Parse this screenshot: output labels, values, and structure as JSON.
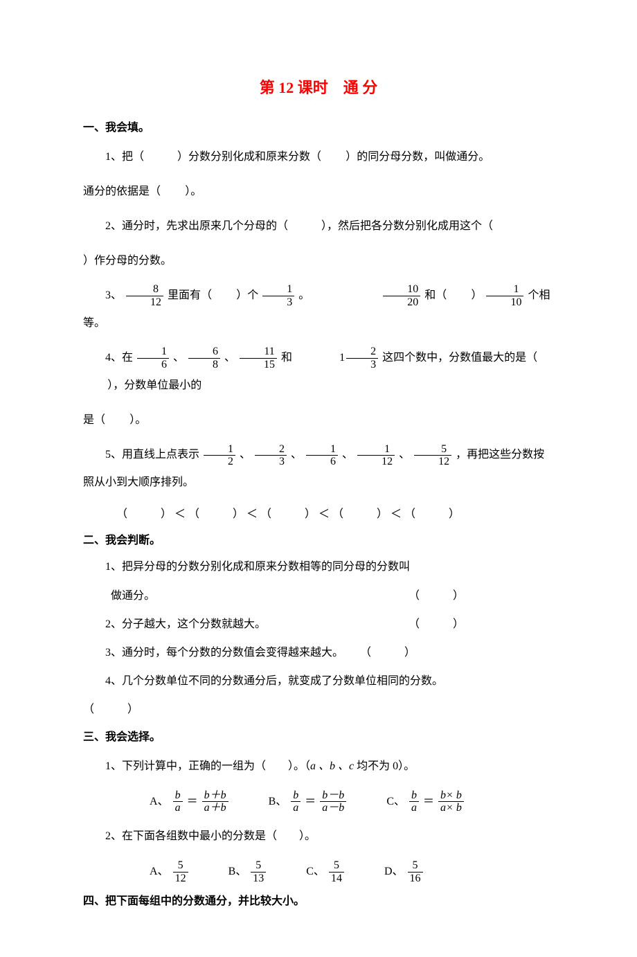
{
  "colors": {
    "title": "#ff0000",
    "text": "#000000",
    "bg": "#ffffff"
  },
  "title": "第 12 课时　通 分",
  "s1": {
    "heading": "一、我会填。",
    "q1a": "1、把（",
    "q1b": "）分数分别化成和原来分数（",
    "q1c": "）的同分母分数，叫做通分。",
    "q1d": "通分的依据是（",
    "q1e": "）。",
    "q2a": "2、通分时，先求出原来几个分母的（",
    "q2b": "），然后把各分数分别化成用这个（",
    "q2c": "）作分母的分数。",
    "q3a": "3、",
    "q3b": " 里面有（",
    "q3c": "）个",
    "q3d": " 。",
    "q3e": " 和（",
    "q3f": "）",
    "q3g": " 个相等。",
    "f8_12_n": "8",
    "f8_12_d": "12",
    "f1_3_n": "1",
    "f1_3_d": "3",
    "f10_20_n": "10",
    "f10_20_d": "20",
    "f1_10_n": "1",
    "f1_10_d": "10",
    "q4a": "4、在",
    "q4b": "、",
    "q4c": "、",
    "q4d": " 和 ",
    "q4mix_whole": "1",
    "q4e": " 这四个数中，分数值最大的是（",
    "q4f": "），分数单位最小的",
    "q4g": "是（",
    "q4h": "）。",
    "f1_6_n": "1",
    "f1_6_d": "6",
    "f6_8_n": "6",
    "f6_8_d": "8",
    "f11_15_n": "11",
    "f11_15_d": "15",
    "f2_3_n": "2",
    "f2_3_d": "3",
    "q5a": "5、用直线上点表示",
    "q5b": " 、",
    "q5c": " 、",
    "q5d": " 、",
    "q5e": " 、",
    "q5f": " ，再把这些分数按照从小到大顺序排列。",
    "f1_2_n": "1",
    "f1_2_d": "2",
    "fA1_6_n": "1",
    "fA1_6_d": "6",
    "f1_12_n": "1",
    "f1_12_d": "12",
    "f5_12_n": "5",
    "f5_12_d": "12",
    "cmp": "（　　　）  ＜ （　　　）  ＜ （　　　）  ＜ （　　　）  ＜ （　　　）"
  },
  "s2": {
    "heading": "二、我会判断。",
    "j1a": "1、把异分母的分数分别化成和原来分数相等的同分母的分数叫",
    "j1b": "做通分。",
    "j2": "2、分子越大，这个分数就越大。",
    "j3": "3、通分时，每个分数的分数值会变得越来越大。",
    "j4a": "4、几个分数单位不同的分数通分后，就变成了分数单位相同的分数。",
    "mark": "（　　　）"
  },
  "s3": {
    "heading": "三、我会选择。",
    "q1": "1、下列计算中，正确的一组为（　　）。（",
    "q1v": "a 、b 、c",
    "q1t": " 均不为 0）。",
    "A": "A、",
    "B": "B、",
    "C": "C、",
    "D": "D、",
    "eq": "＝",
    "b": "b",
    "a": "a",
    "bp": "b＋b",
    "ap": "a＋b",
    "bm": "b－b",
    "am": "a－b",
    "bt": "b× b",
    "at": "a× b",
    "q2": "2、在下面各组数中最小的分数是（　　）。",
    "fA_n": "5",
    "fA_d": "12",
    "fB_n": "5",
    "fB_d": "13",
    "fC_n": "5",
    "fC_d": "14",
    "fD_n": "5",
    "fD_d": "16"
  },
  "s4": {
    "heading": "四、把下面每组中的分数通分，并比较大小。"
  }
}
